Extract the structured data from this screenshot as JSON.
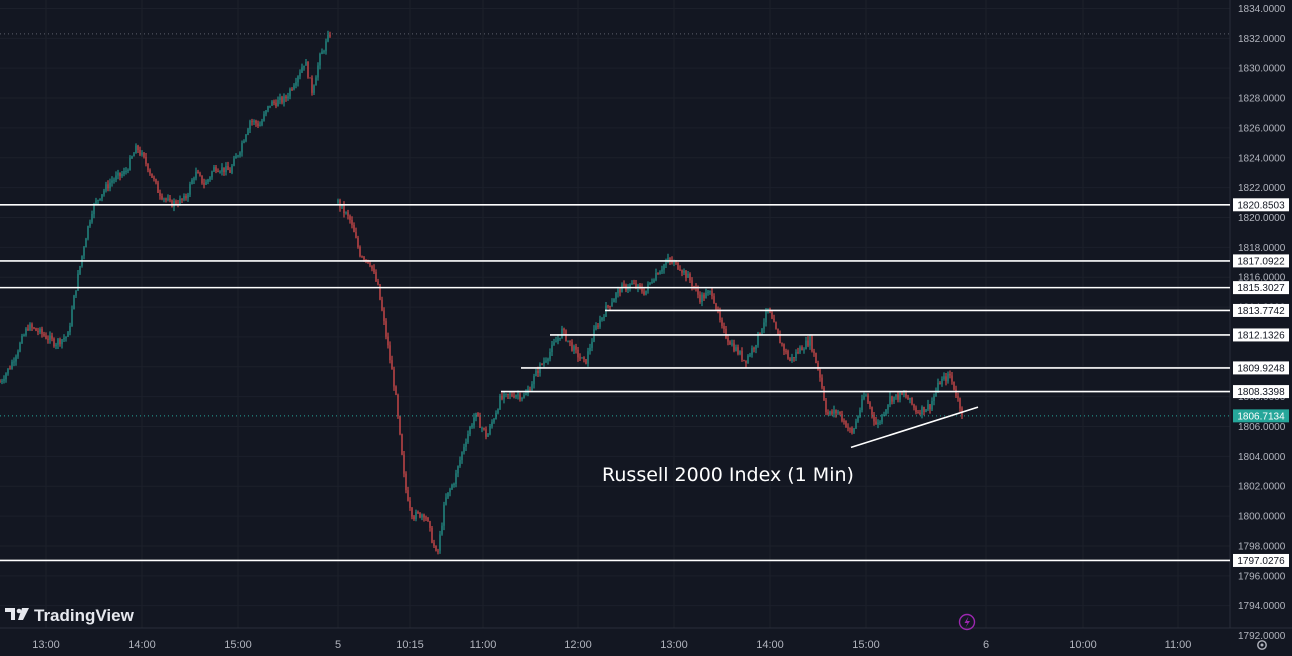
{
  "chart_data": {
    "type": "candlestick",
    "title": "Russell 2000 Index (1 Min)",
    "watermark": "TradingView",
    "ylim": [
      1791.5,
      1834.5
    ],
    "y_ticks": [
      1792,
      1794,
      1796,
      1798,
      1800,
      1802,
      1804,
      1806,
      1808,
      1810,
      1812,
      1814,
      1816,
      1818,
      1820,
      1822,
      1824,
      1826,
      1828,
      1830,
      1832,
      1834
    ],
    "x_ticks": [
      "13:00",
      "14:00",
      "15:00",
      "5",
      "10:15",
      "11:00",
      "12:00",
      "13:00",
      "14:00",
      "15:00",
      "6",
      "10:00",
      "11:00"
    ],
    "horizontal_levels": [
      {
        "value": 1820.8503,
        "label": "1820.8503",
        "extent": "full"
      },
      {
        "value": 1817.0922,
        "label": "1817.0922",
        "extent": "full"
      },
      {
        "value": 1815.3027,
        "label": "1815.3027",
        "extent": "full"
      },
      {
        "value": 1813.7742,
        "label": "1813.7742",
        "extent": "partial"
      },
      {
        "value": 1812.1326,
        "label": "1812.1326",
        "extent": "partial"
      },
      {
        "value": 1809.9248,
        "label": "1809.9248",
        "extent": "partial"
      },
      {
        "value": 1808.3398,
        "label": "1808.3398",
        "extent": "partial"
      },
      {
        "value": 1797.0276,
        "label": "1797.0276",
        "extent": "full"
      }
    ],
    "current_price": {
      "value": 1806.7134,
      "label": "1806.7134"
    },
    "previous_high_line": 1832.3,
    "trendline": {
      "from": [
        1804.6
      ],
      "to": [
        1807.3
      ]
    },
    "price_path": [
      [
        0,
        1809.0
      ],
      [
        10,
        1810.0
      ],
      [
        20,
        1811.5
      ],
      [
        28,
        1812.7
      ],
      [
        40,
        1812.3
      ],
      [
        55,
        1811.6
      ],
      [
        68,
        1812.1
      ],
      [
        75,
        1815.0
      ],
      [
        85,
        1818.5
      ],
      [
        92,
        1820.5
      ],
      [
        100,
        1821.5
      ],
      [
        112,
        1822.5
      ],
      [
        125,
        1823.0
      ],
      [
        137,
        1824.7
      ],
      [
        148,
        1823.4
      ],
      [
        158,
        1821.8
      ],
      [
        170,
        1820.9
      ],
      [
        185,
        1821.2
      ],
      [
        195,
        1823.0
      ],
      [
        205,
        1822.2
      ],
      [
        215,
        1823.4
      ],
      [
        230,
        1823.1
      ],
      [
        240,
        1824.6
      ],
      [
        250,
        1826.5
      ],
      [
        260,
        1826.2
      ],
      [
        270,
        1827.6
      ],
      [
        285,
        1827.9
      ],
      [
        295,
        1829.2
      ],
      [
        305,
        1830.5
      ],
      [
        312,
        1828.5
      ],
      [
        320,
        1830.7
      ],
      [
        330,
        1832.3
      ]
    ],
    "price_path_day2": [
      [
        338,
        1821.0
      ],
      [
        350,
        1819.8
      ],
      [
        360,
        1817.6
      ],
      [
        370,
        1817.0
      ],
      [
        378,
        1815.3
      ],
      [
        385,
        1812.5
      ],
      [
        395,
        1808.5
      ],
      [
        405,
        1802.0
      ],
      [
        413,
        1800.0
      ],
      [
        425,
        1800.2
      ],
      [
        437,
        1797.2
      ],
      [
        445,
        1801.0
      ],
      [
        455,
        1802.5
      ],
      [
        465,
        1805.0
      ],
      [
        475,
        1806.8
      ],
      [
        487,
        1805.3
      ],
      [
        500,
        1807.8
      ],
      [
        515,
        1808.2
      ],
      [
        525,
        1808.0
      ],
      [
        538,
        1809.8
      ],
      [
        550,
        1811.0
      ],
      [
        562,
        1812.4
      ],
      [
        575,
        1811.0
      ],
      [
        585,
        1810.2
      ],
      [
        595,
        1812.5
      ],
      [
        607,
        1814.0
      ],
      [
        620,
        1815.2
      ],
      [
        632,
        1815.5
      ],
      [
        645,
        1815.0
      ],
      [
        655,
        1816.2
      ],
      [
        668,
        1817.1
      ],
      [
        680,
        1816.7
      ],
      [
        690,
        1815.8
      ],
      [
        700,
        1814.6
      ],
      [
        712,
        1815.0
      ],
      [
        722,
        1812.5
      ],
      [
        732,
        1811.5
      ],
      [
        745,
        1810.4
      ],
      [
        755,
        1811.5
      ],
      [
        768,
        1813.8
      ],
      [
        778,
        1812.0
      ],
      [
        790,
        1810.4
      ],
      [
        800,
        1811.2
      ],
      [
        810,
        1811.8
      ],
      [
        820,
        1809.4
      ],
      [
        827,
        1806.8
      ],
      [
        838,
        1807.0
      ],
      [
        852,
        1805.5
      ],
      [
        865,
        1808.2
      ],
      [
        877,
        1806.0
      ],
      [
        890,
        1807.9
      ],
      [
        905,
        1808.1
      ],
      [
        917,
        1807.0
      ],
      [
        930,
        1807.4
      ],
      [
        940,
        1809.0
      ],
      [
        950,
        1809.4
      ],
      [
        962,
        1807.0
      ]
    ]
  }
}
